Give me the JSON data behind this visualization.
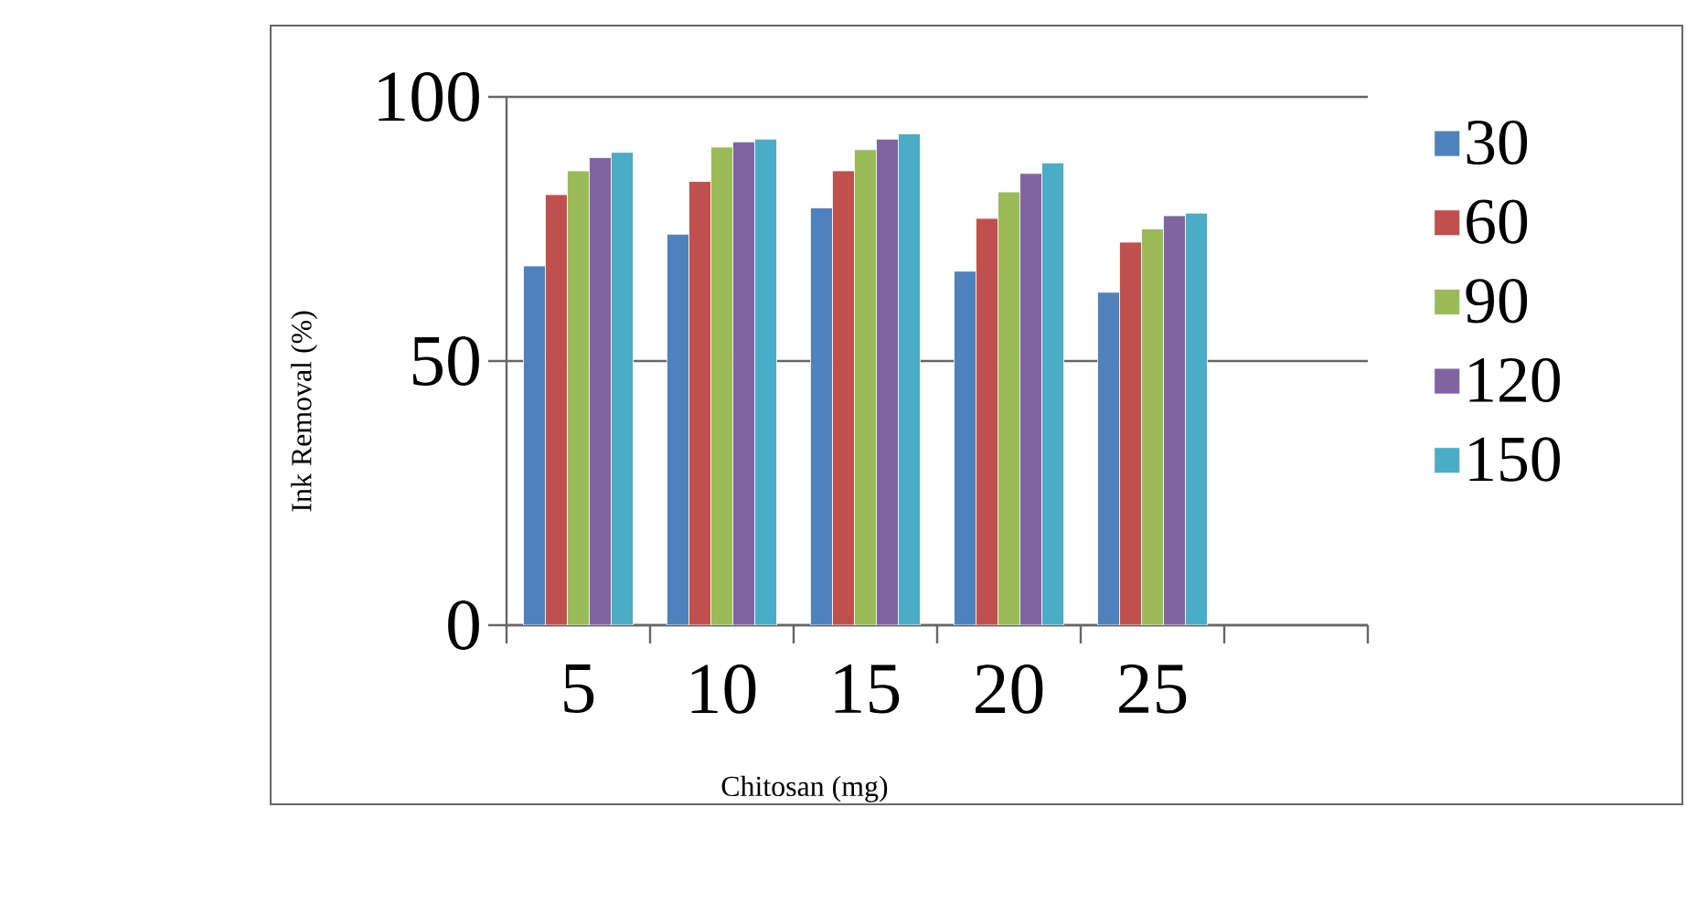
{
  "chart_data": {
    "type": "bar",
    "xlabel": "Chitosan (mg)",
    "ylabel": "Ink Removal (%)",
    "categories": [
      "5",
      "10",
      "15",
      "20",
      "25",
      null
    ],
    "series": [
      {
        "name": "30",
        "color": "#4f81bd",
        "values": [
          68,
          74,
          79,
          67,
          63,
          null
        ]
      },
      {
        "name": "60",
        "color": "#c0504d",
        "values": [
          81.5,
          84,
          86,
          77,
          72.5,
          null
        ]
      },
      {
        "name": "90",
        "color": "#9bbb59",
        "values": [
          86,
          90.5,
          90,
          82,
          75,
          null
        ]
      },
      {
        "name": "120",
        "color": "#8064a2",
        "values": [
          88.5,
          91.5,
          92,
          85.5,
          77.5,
          null
        ]
      },
      {
        "name": "150",
        "color": "#4bacc6",
        "values": [
          89.5,
          92,
          93,
          87.5,
          78,
          null
        ]
      }
    ],
    "ylim": [
      0,
      100
    ],
    "yticks": [
      0,
      50,
      100
    ],
    "grid": "y",
    "legend": "right"
  }
}
